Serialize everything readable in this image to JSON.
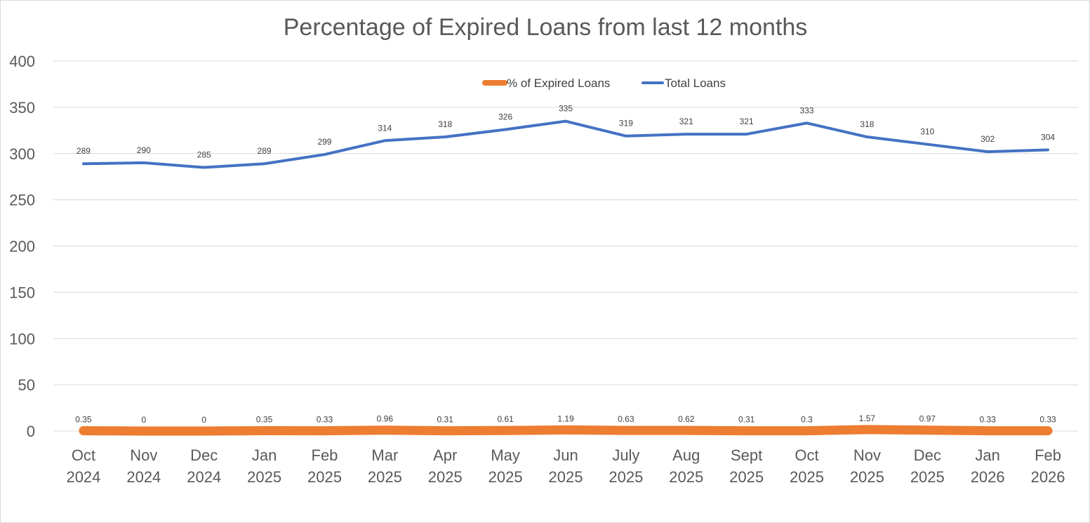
{
  "chart_data": {
    "type": "line",
    "title": "Percentage of Expired Loans from last 12 months",
    "categories": [
      [
        "Oct",
        "2024"
      ],
      [
        "Nov",
        "2024"
      ],
      [
        "Dec",
        "2024"
      ],
      [
        "Jan",
        "2025"
      ],
      [
        "Feb",
        "2025"
      ],
      [
        "Mar",
        "2025"
      ],
      [
        "Apr",
        "2025"
      ],
      [
        "May",
        "2025"
      ],
      [
        "Jun",
        "2025"
      ],
      [
        "July",
        "2025"
      ],
      [
        "Aug",
        "2025"
      ],
      [
        "Sept",
        "2025"
      ],
      [
        "Oct",
        "2025"
      ],
      [
        "Nov",
        "2025"
      ],
      [
        "Dec",
        "2025"
      ],
      [
        "Jan",
        "2026"
      ],
      [
        "Feb",
        "2026"
      ]
    ],
    "series": [
      {
        "name": "% of Expired Loans",
        "color": "#ED7D31",
        "values": [
          0.35,
          0,
          0,
          0.35,
          0.33,
          0.96,
          0.31,
          0.61,
          1.19,
          0.63,
          0.62,
          0.31,
          0.3,
          1.57,
          0.97,
          0.33,
          0.33
        ]
      },
      {
        "name": "Total Loans",
        "color": "#4472C4",
        "values": [
          289,
          290,
          285,
          289,
          299,
          314,
          318,
          326,
          335,
          319,
          321,
          321,
          333,
          318,
          310,
          302,
          304
        ]
      }
    ],
    "ylim": [
      0,
      400
    ],
    "yticks": [
      0,
      50,
      100,
      150,
      200,
      250,
      300,
      350,
      400
    ],
    "grid": true,
    "legend_position": "top-center",
    "data_labels": true
  }
}
